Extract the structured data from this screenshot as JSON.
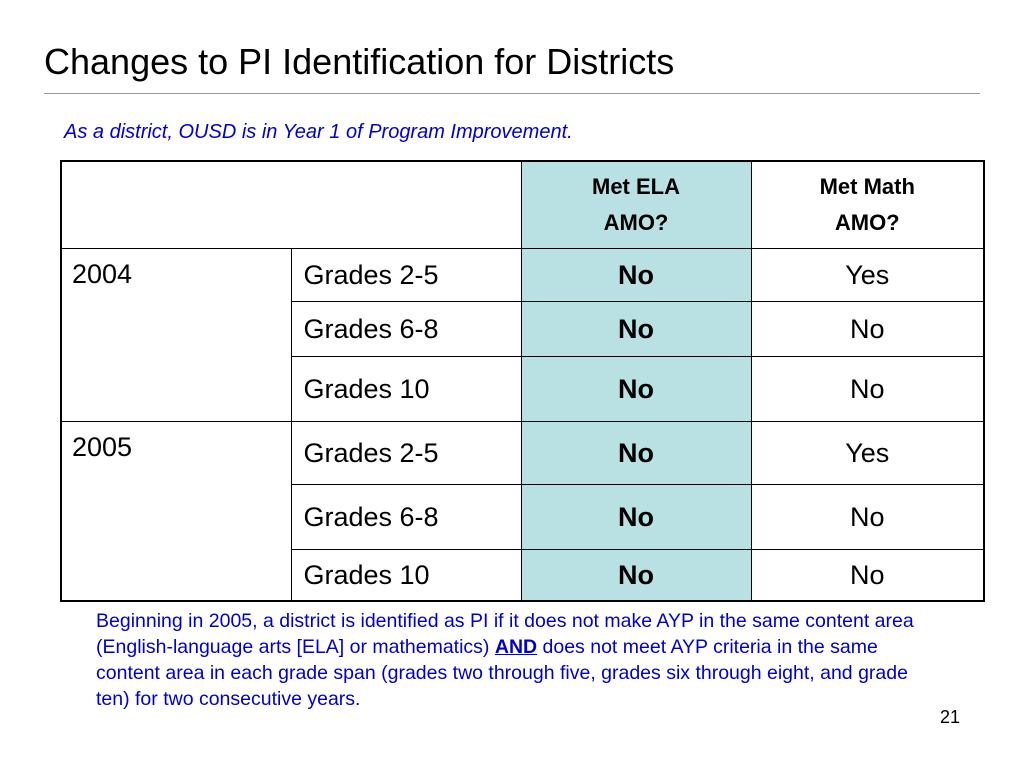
{
  "slide": {
    "title": "Changes to PI Identification for Districts",
    "subtitle": "As a district, OUSD is in Year 1 of Program Improvement.",
    "page_number": "21"
  },
  "table": {
    "header": {
      "ela_line1": "Met ELA",
      "ela_line2": "AMO?",
      "math_line1": "Met Math",
      "math_line2": "AMO?"
    },
    "rows": [
      {
        "year": "2004",
        "grade": "Grades 2-5",
        "ela": "No",
        "math": "Yes"
      },
      {
        "year": "",
        "grade": "Grades 6-8",
        "ela": "No",
        "math": "No"
      },
      {
        "year": "",
        "grade": "Grades 10",
        "ela": "No",
        "math": "No"
      },
      {
        "year": "2005",
        "grade": "Grades 2-5",
        "ela": "No",
        "math": "Yes"
      },
      {
        "year": "",
        "grade": "Grades 6-8",
        "ela": "No",
        "math": "No"
      },
      {
        "year": "",
        "grade": "Grades 10",
        "ela": "No",
        "math": "No"
      }
    ]
  },
  "note": {
    "part1": "Beginning in 2005, a district is identified as PI if it does not make AYP in the same content area (English-language arts [ELA] or mathematics) ",
    "emphasis": "AND",
    "part2": " does not meet AYP criteria in the same content area in each grade span (grades two through five, grades six through eight, and grade ten) for two consecutive years."
  },
  "colors": {
    "ela_column": "#b9e1e4",
    "accent_text": "#0000cc"
  }
}
